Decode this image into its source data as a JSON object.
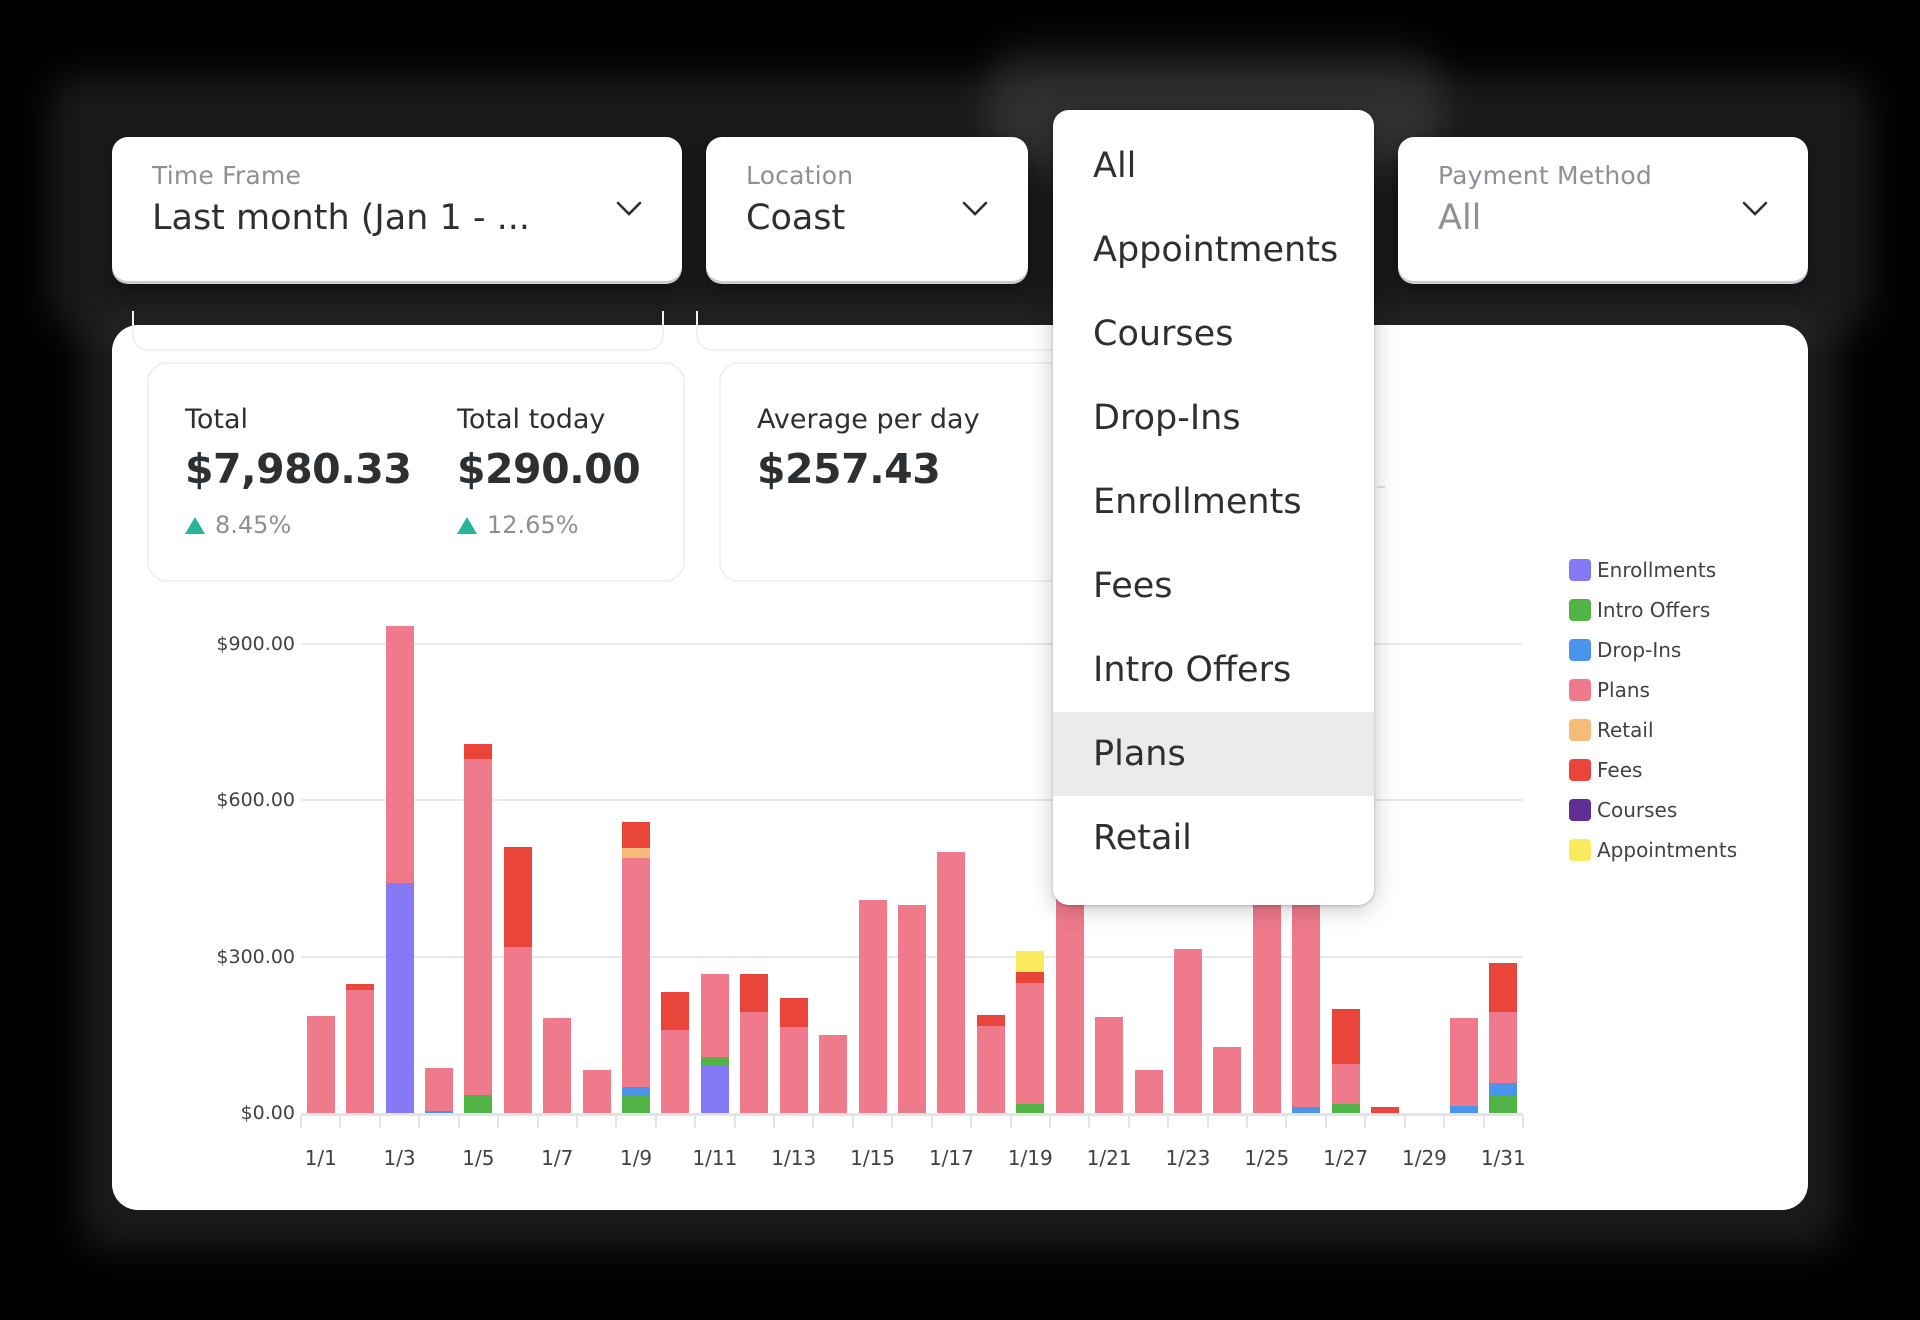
{
  "filters": {
    "time_frame": {
      "label": "Time Frame",
      "value": "Last month (Jan 1 - ..."
    },
    "location": {
      "label": "Location",
      "value": "Coast"
    },
    "payment_method": {
      "label": "Payment Method",
      "value": "All"
    }
  },
  "dropdown": {
    "items": [
      "All",
      "Appointments",
      "Courses",
      "Drop-Ins",
      "Enrollments",
      "Fees",
      "Intro Offers",
      "Plans",
      "Retail"
    ],
    "highlighted": "Plans"
  },
  "stats": {
    "total": {
      "label": "Total",
      "value": "$7,980.33",
      "change": "8.45%"
    },
    "total_today": {
      "label": "Total today",
      "value": "$290.00",
      "change": "12.65%"
    },
    "average_per_day": {
      "label": "Average per day",
      "value": "$257.43"
    }
  },
  "colors": {
    "Enrollments": "#8579f5",
    "Intro Offers": "#52b447",
    "Drop-Ins": "#4b94ec",
    "Plans": "#ee7a8c",
    "Retail": "#f5bb78",
    "Fees": "#ea453b",
    "Courses": "#5f2f94",
    "Appointments": "#fbe95e",
    "up_arrow": "#26b59b"
  },
  "chart_data": {
    "type": "bar",
    "stacked": true,
    "title": "",
    "xlabel": "",
    "ylabel": "",
    "ylim": [
      0,
      900
    ],
    "yticks": [
      "$0.00",
      "$300.00",
      "$600.00",
      "$900.00"
    ],
    "ytick_values": [
      0,
      300,
      600,
      900
    ],
    "grid": true,
    "legend_position": "right",
    "x_tick_labels": [
      "1/1",
      "1/3",
      "1/5",
      "1/7",
      "1/9",
      "1/11",
      "1/13",
      "1/15",
      "1/17",
      "1/19",
      "1/21",
      "1/23",
      "1/25",
      "1/27",
      "1/29",
      "1/31"
    ],
    "categories": [
      "1/1",
      "1/2",
      "1/3",
      "1/4",
      "1/5",
      "1/6",
      "1/7",
      "1/8",
      "1/9",
      "1/10",
      "1/11",
      "1/12",
      "1/13",
      "1/14",
      "1/15",
      "1/16",
      "1/17",
      "1/18",
      "1/19",
      "1/20",
      "1/21",
      "1/22",
      "1/23",
      "1/24",
      "1/25",
      "1/26",
      "1/27",
      "1/28",
      "1/29",
      "1/30",
      "1/31"
    ],
    "legend": [
      "Enrollments",
      "Intro Offers",
      "Drop-Ins",
      "Plans",
      "Retail",
      "Fees",
      "Courses",
      "Appointments"
    ],
    "series": [
      {
        "name": "Enrollments",
        "values": [
          0,
          0,
          441,
          0,
          0,
          0,
          0,
          0,
          0,
          0,
          91,
          0,
          0,
          0,
          0,
          0,
          0,
          0,
          0,
          0,
          0,
          0,
          0,
          0,
          0,
          0,
          0,
          0,
          0,
          0,
          0
        ]
      },
      {
        "name": "Intro Offers",
        "values": [
          0,
          0,
          0,
          0,
          35,
          0,
          0,
          0,
          35,
          0,
          17,
          0,
          0,
          0,
          0,
          0,
          0,
          0,
          18,
          0,
          0,
          0,
          0,
          0,
          0,
          0,
          17,
          0,
          0,
          0,
          33
        ]
      },
      {
        "name": "Drop-Ins",
        "values": [
          0,
          0,
          0,
          4,
          0,
          0,
          0,
          0,
          15,
          0,
          0,
          0,
          0,
          0,
          0,
          0,
          0,
          0,
          0,
          0,
          0,
          0,
          0,
          0,
          0,
          12,
          0,
          0,
          0,
          13,
          25
        ]
      },
      {
        "name": "Plans",
        "values": [
          187,
          237,
          494,
          83,
          644,
          318,
          182,
          82,
          440,
          160,
          159,
          194,
          166,
          150,
          409,
          399,
          501,
          167,
          232,
          430,
          184,
          82,
          314,
          127,
          420,
          410,
          78,
          0,
          0,
          170,
          135
        ]
      },
      {
        "name": "Retail",
        "values": [
          0,
          0,
          0,
          0,
          0,
          0,
          0,
          0,
          18,
          0,
          0,
          0,
          0,
          0,
          0,
          0,
          0,
          0,
          0,
          0,
          0,
          0,
          0,
          0,
          0,
          0,
          0,
          0,
          0,
          0,
          0
        ]
      },
      {
        "name": "Fees",
        "values": [
          0,
          10,
          0,
          0,
          29,
          192,
          0,
          0,
          50,
          73,
          0,
          73,
          54,
          0,
          0,
          0,
          0,
          21,
          20,
          30,
          0,
          0,
          0,
          0,
          0,
          0,
          104,
          11,
          0,
          0,
          94
        ]
      },
      {
        "name": "Courses",
        "values": [
          0,
          0,
          0,
          0,
          0,
          0,
          0,
          0,
          0,
          0,
          0,
          0,
          0,
          0,
          0,
          0,
          0,
          0,
          0,
          0,
          0,
          0,
          0,
          0,
          0,
          0,
          0,
          0,
          0,
          0,
          0
        ]
      },
      {
        "name": "Appointments",
        "values": [
          0,
          0,
          0,
          0,
          0,
          0,
          0,
          0,
          0,
          0,
          0,
          0,
          0,
          0,
          0,
          0,
          0,
          0,
          41,
          0,
          0,
          0,
          0,
          0,
          0,
          0,
          0,
          0,
          0,
          0,
          0
        ]
      }
    ]
  }
}
